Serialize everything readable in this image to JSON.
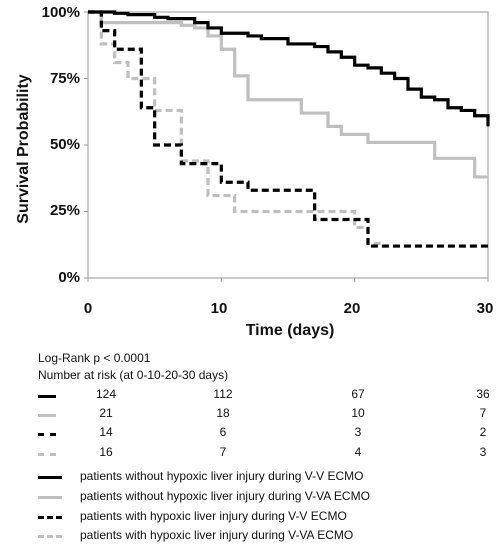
{
  "chart_data": {
    "type": "line",
    "step": true,
    "xlabel": "Time (days)",
    "ylabel": "Survival Probability",
    "xlim": [
      0,
      30
    ],
    "ylim": [
      0,
      100
    ],
    "x_ticks": [
      "0",
      "10",
      "20",
      "30"
    ],
    "y_ticks": [
      "0%",
      "25%",
      "50%",
      "75%",
      "100%"
    ],
    "grid": false,
    "series": [
      {
        "name": "patients without hypoxic liver injury during V-V ECMO",
        "color": "#000000",
        "dash": "solid",
        "x": [
          0,
          2,
          3,
          5,
          6,
          8,
          9,
          10,
          12,
          13,
          15,
          17,
          18,
          19,
          20,
          21,
          22,
          23,
          24,
          25,
          26,
          27,
          28,
          29,
          30
        ],
        "y": [
          100,
          99.5,
          99,
          98,
          97.5,
          96,
          94,
          92,
          91,
          90,
          88,
          87,
          85,
          83,
          80,
          79,
          77,
          75,
          71,
          68,
          67,
          64,
          63,
          61,
          57
        ]
      },
      {
        "name": "patients without hypoxic liver injury during V-VA ECMO",
        "color": "#bfbfbf",
        "dash": "solid",
        "x": [
          0,
          1,
          6,
          7,
          8,
          9,
          10,
          11,
          12,
          16,
          18,
          19,
          21,
          23,
          26,
          29,
          30
        ],
        "y": [
          100,
          96,
          96,
          95,
          94,
          91,
          86,
          76,
          67,
          62,
          57,
          54,
          51,
          51,
          45,
          38,
          38
        ]
      },
      {
        "name": "patients with hypoxic liver injury during V-V ECMO",
        "color": "#000000",
        "dash": "dashed",
        "x": [
          0,
          1,
          2,
          4,
          5,
          7,
          10,
          12,
          17,
          21,
          30
        ],
        "y": [
          100,
          93,
          86,
          64,
          50,
          43,
          36,
          33,
          22,
          12,
          12
        ]
      },
      {
        "name": "patients with hypoxic liver injury during V-VA ECMO",
        "color": "#bfbfbf",
        "dash": "dashed",
        "x": [
          0,
          1,
          2,
          3,
          5,
          7,
          9,
          11,
          13,
          16,
          18,
          20,
          21,
          22,
          30
        ],
        "y": [
          100,
          88,
          81,
          75,
          63,
          44,
          31,
          25,
          25,
          25,
          25,
          19,
          13,
          12,
          12
        ]
      }
    ]
  },
  "stats": {
    "logrank": "Log-Rank p < 0.0001",
    "risk_title": "Number at risk (at 0-10-20-30 days)"
  },
  "risk_table": [
    {
      "values": [
        "124",
        "112",
        "67",
        "36"
      ]
    },
    {
      "values": [
        "21",
        "18",
        "10",
        "7"
      ]
    },
    {
      "values": [
        "14",
        "6",
        "3",
        "2"
      ]
    },
    {
      "values": [
        "16",
        "7",
        "4",
        "3"
      ]
    }
  ]
}
